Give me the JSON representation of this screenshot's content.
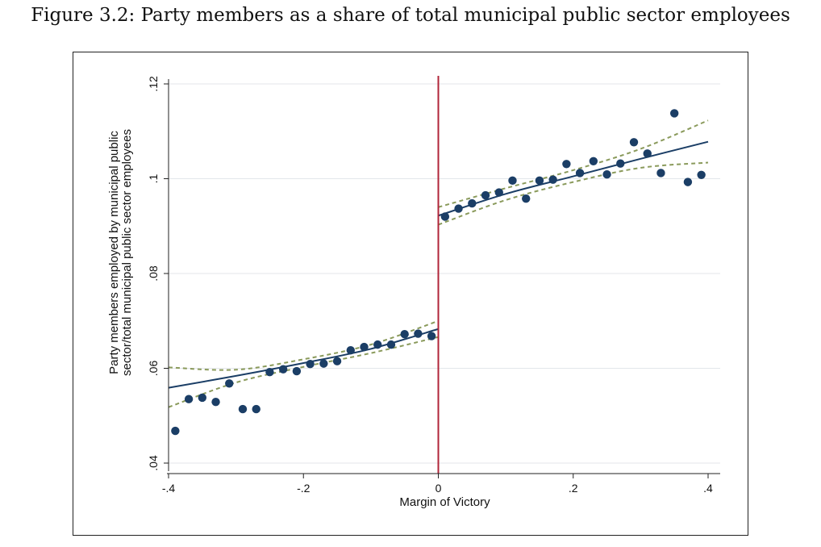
{
  "caption": "Figure 3.2: Party members as a share of total municipal public sector employees",
  "chart_data": {
    "type": "scatter",
    "title": "",
    "xlabel": "Margin of Victory",
    "ylabel_lines": [
      "Party members employed by municipal public",
      "sector/total municipal public sector employees"
    ],
    "xlim": [
      -0.4,
      0.4
    ],
    "ylim": [
      0.04,
      0.12
    ],
    "x_ticks": [
      -0.4,
      -0.2,
      0,
      0.2,
      0.4
    ],
    "x_tick_labels": [
      "-.4",
      "-.2",
      "0",
      ".2",
      ".4"
    ],
    "y_ticks": [
      0.04,
      0.06,
      0.08,
      0.1,
      0.12
    ],
    "y_tick_labels": [
      ".04",
      ".06",
      ".08",
      ".1",
      ".12"
    ],
    "grid": "horizontal",
    "cutoff_line": {
      "x": 0,
      "color": "#b0253a"
    },
    "colors": {
      "points": "#1b3e66",
      "fit": "#1b3e66",
      "ci": "#8a9a5b",
      "grid": "#e3e6ea"
    },
    "points": [
      [
        -0.39,
        0.0468
      ],
      [
        -0.37,
        0.0535
      ],
      [
        -0.35,
        0.0538
      ],
      [
        -0.33,
        0.0529
      ],
      [
        -0.31,
        0.0568
      ],
      [
        -0.29,
        0.0514
      ],
      [
        -0.27,
        0.0514
      ],
      [
        -0.25,
        0.0592
      ],
      [
        -0.23,
        0.0598
      ],
      [
        -0.21,
        0.0594
      ],
      [
        -0.19,
        0.0609
      ],
      [
        -0.17,
        0.061
      ],
      [
        -0.15,
        0.0615
      ],
      [
        -0.13,
        0.0638
      ],
      [
        -0.11,
        0.0645
      ],
      [
        -0.09,
        0.065
      ],
      [
        -0.07,
        0.065
      ],
      [
        -0.05,
        0.0672
      ],
      [
        -0.03,
        0.0673
      ],
      [
        -0.01,
        0.0668
      ],
      [
        0.01,
        0.092
      ],
      [
        0.03,
        0.0937
      ],
      [
        0.05,
        0.0948
      ],
      [
        0.07,
        0.0965
      ],
      [
        0.09,
        0.0971
      ],
      [
        0.11,
        0.0996
      ],
      [
        0.13,
        0.0958
      ],
      [
        0.15,
        0.0996
      ],
      [
        0.17,
        0.0998
      ],
      [
        0.19,
        0.1031
      ],
      [
        0.21,
        0.1012
      ],
      [
        0.23,
        0.1037
      ],
      [
        0.25,
        0.1009
      ],
      [
        0.27,
        0.1032
      ],
      [
        0.29,
        0.1077
      ],
      [
        0.31,
        0.1053
      ],
      [
        0.33,
        0.1012
      ],
      [
        0.35,
        0.1138
      ],
      [
        0.37,
        0.0993
      ],
      [
        0.39,
        0.1008
      ]
    ],
    "fit_left": [
      [
        -0.4,
        0.0559
      ],
      [
        -0.3,
        0.0584
      ],
      [
        -0.2,
        0.0611
      ],
      [
        -0.1,
        0.0641
      ],
      [
        0.0,
        0.0683
      ]
    ],
    "ci_left_upper": [
      [
        -0.4,
        0.0602
      ],
      [
        -0.3,
        0.0597
      ],
      [
        -0.2,
        0.0619
      ],
      [
        -0.1,
        0.065
      ],
      [
        0.0,
        0.07
      ]
    ],
    "ci_left_lower": [
      [
        -0.4,
        0.0518
      ],
      [
        -0.3,
        0.057
      ],
      [
        -0.2,
        0.0603
      ],
      [
        -0.1,
        0.0632
      ],
      [
        0.0,
        0.0666
      ]
    ],
    "fit_right": [
      [
        0.0,
        0.0922
      ],
      [
        0.1,
        0.0968
      ],
      [
        0.2,
        0.1005
      ],
      [
        0.3,
        0.1042
      ],
      [
        0.4,
        0.1078
      ]
    ],
    "ci_right_upper": [
      [
        0.0,
        0.094
      ],
      [
        0.1,
        0.098
      ],
      [
        0.2,
        0.1018
      ],
      [
        0.3,
        0.1063
      ],
      [
        0.4,
        0.1123
      ]
    ],
    "ci_right_lower": [
      [
        0.0,
        0.0903
      ],
      [
        0.1,
        0.0955
      ],
      [
        0.2,
        0.0993
      ],
      [
        0.3,
        0.1023
      ],
      [
        0.4,
        0.1034
      ]
    ]
  }
}
